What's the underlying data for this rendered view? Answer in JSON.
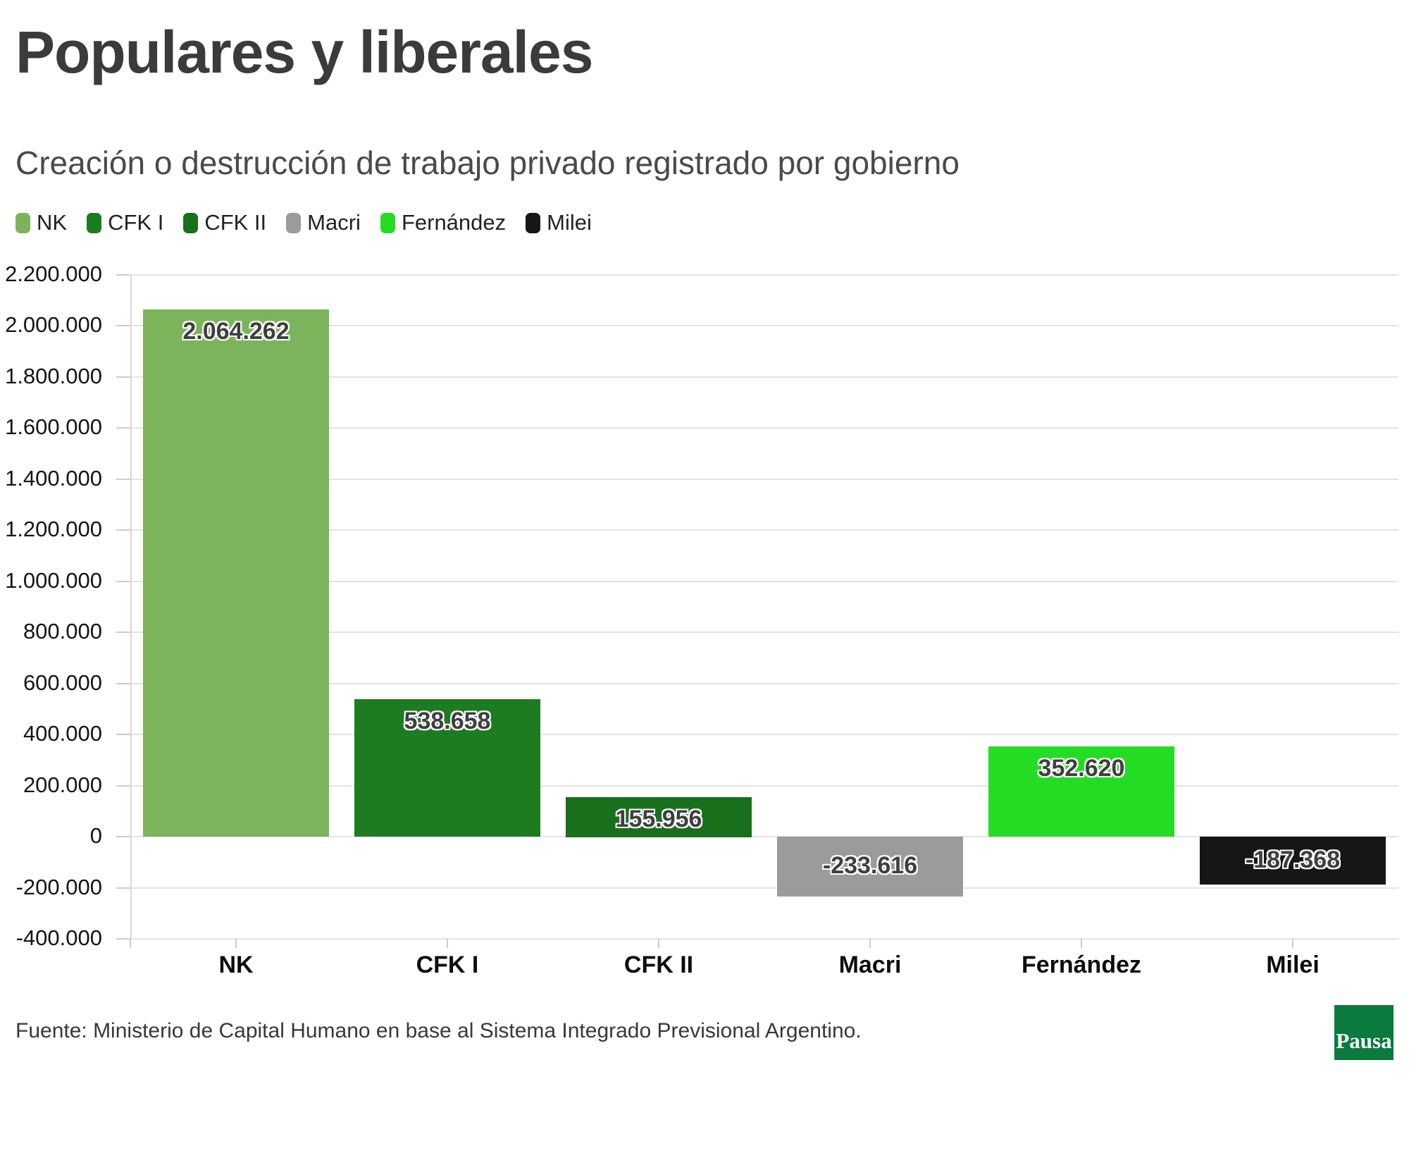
{
  "title": "Populares y liberales",
  "subtitle": "Creación o destrucción de trabajo privado registrado por gobierno",
  "legend": [
    {
      "label": "NK",
      "color": "#7cb45c"
    },
    {
      "label": "CFK I",
      "color": "#1d7c21"
    },
    {
      "label": "CFK II",
      "color": "#186f1c"
    },
    {
      "label": "Macri",
      "color": "#9b9b9b"
    },
    {
      "label": "Fernández",
      "color": "#25dc25"
    },
    {
      "label": "Milei",
      "color": "#161616"
    }
  ],
  "chart_data": {
    "type": "bar",
    "title": "Populares y liberales",
    "subtitle": "Creación o destrucción de trabajo privado registrado por gobierno",
    "categories": [
      "NK",
      "CFK I",
      "CFK II",
      "Macri",
      "Fernández",
      "Milei"
    ],
    "values": [
      2064262,
      538658,
      155956,
      -233616,
      352620,
      -187368
    ],
    "value_labels": [
      "2.064.262",
      "538.658",
      "155.956",
      "-233.616",
      "352.620",
      "-187.368"
    ],
    "bar_colors": [
      "#7cb45c",
      "#1d7c21",
      "#186f1c",
      "#9b9b9b",
      "#25dc25",
      "#161616"
    ],
    "xlabel": "",
    "ylabel": "",
    "ylim": [
      -400000,
      2200000
    ],
    "ytick_step": 200000,
    "ytick_labels": [
      "2.200.000",
      "2.000.000",
      "1.800.000",
      "1.600.000",
      "1.400.000",
      "1.200.000",
      "1.000.000",
      "800.000",
      "600.000",
      "400.000",
      "200.000",
      "0",
      "-200.000",
      "-400.000"
    ],
    "grid": true,
    "legend_position": "top"
  },
  "footer": {
    "source": "Fuente: Ministerio de Capital Humano en base al Sistema Integrado Previsional Argentino.",
    "logo_text": "Pausa",
    "logo_color": "#0b7a3e"
  }
}
